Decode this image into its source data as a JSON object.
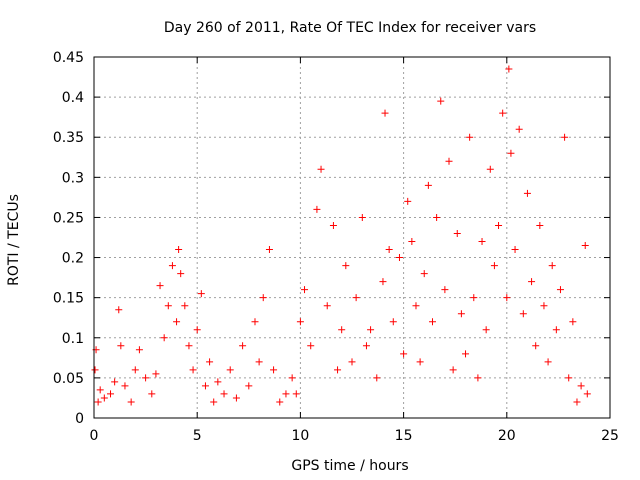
{
  "chart_data": {
    "type": "scatter",
    "title": "Day 260 of 2011, Rate Of TEC Index for receiver vars",
    "xlabel": "GPS time / hours",
    "ylabel": "ROTI / TECUs",
    "xlim": [
      0,
      25
    ],
    "ylim": [
      0,
      0.45
    ],
    "x_ticks": [
      0,
      5,
      10,
      15,
      20,
      25
    ],
    "y_ticks": [
      0,
      0.05,
      0.1,
      0.15,
      0.2,
      0.25,
      0.3,
      0.35,
      0.4,
      0.45
    ],
    "x_tick_labels": [
      "0",
      "5",
      "10",
      "15",
      "20",
      "25"
    ],
    "y_tick_labels": [
      "0",
      "0.05",
      "0.1",
      "0.15",
      "0.2",
      "0.25",
      "0.3",
      "0.35",
      "0.4",
      "0.45"
    ],
    "grid": true,
    "marker": "+",
    "color": "#ff0000",
    "series": [
      {
        "points": [
          [
            0.05,
            0.06
          ],
          [
            0.1,
            0.085
          ],
          [
            0.2,
            0.02
          ],
          [
            0.3,
            0.035
          ],
          [
            0.5,
            0.025
          ],
          [
            0.8,
            0.03
          ],
          [
            1.0,
            0.045
          ],
          [
            1.2,
            0.135
          ],
          [
            1.3,
            0.09
          ],
          [
            1.5,
            0.04
          ],
          [
            1.8,
            0.02
          ],
          [
            2.0,
            0.06
          ],
          [
            2.2,
            0.085
          ],
          [
            2.5,
            0.05
          ],
          [
            2.8,
            0.03
          ],
          [
            3.0,
            0.055
          ],
          [
            3.2,
            0.165
          ],
          [
            3.4,
            0.1
          ],
          [
            3.6,
            0.14
          ],
          [
            3.8,
            0.19
          ],
          [
            4.0,
            0.12
          ],
          [
            4.1,
            0.21
          ],
          [
            4.2,
            0.18
          ],
          [
            4.4,
            0.14
          ],
          [
            4.6,
            0.09
          ],
          [
            4.8,
            0.06
          ],
          [
            5.0,
            0.11
          ],
          [
            5.2,
            0.155
          ],
          [
            5.4,
            0.04
          ],
          [
            5.6,
            0.07
          ],
          [
            5.8,
            0.02
          ],
          [
            6.0,
            0.045
          ],
          [
            6.3,
            0.03
          ],
          [
            6.6,
            0.06
          ],
          [
            6.9,
            0.025
          ],
          [
            7.2,
            0.09
          ],
          [
            7.5,
            0.04
          ],
          [
            7.8,
            0.12
          ],
          [
            8.0,
            0.07
          ],
          [
            8.2,
            0.15
          ],
          [
            8.5,
            0.21
          ],
          [
            8.7,
            0.06
          ],
          [
            9.0,
            0.02
          ],
          [
            9.3,
            0.03
          ],
          [
            9.6,
            0.05
          ],
          [
            9.8,
            0.03
          ],
          [
            10.0,
            0.12
          ],
          [
            10.2,
            0.16
          ],
          [
            10.5,
            0.09
          ],
          [
            10.8,
            0.26
          ],
          [
            11.0,
            0.31
          ],
          [
            11.3,
            0.14
          ],
          [
            11.6,
            0.24
          ],
          [
            11.8,
            0.06
          ],
          [
            12.0,
            0.11
          ],
          [
            12.2,
            0.19
          ],
          [
            12.5,
            0.07
          ],
          [
            12.7,
            0.15
          ],
          [
            13.0,
            0.25
          ],
          [
            13.2,
            0.09
          ],
          [
            13.4,
            0.11
          ],
          [
            13.7,
            0.05
          ],
          [
            14.0,
            0.17
          ],
          [
            14.1,
            0.38
          ],
          [
            14.3,
            0.21
          ],
          [
            14.5,
            0.12
          ],
          [
            14.8,
            0.2
          ],
          [
            15.0,
            0.08
          ],
          [
            15.2,
            0.27
          ],
          [
            15.4,
            0.22
          ],
          [
            15.6,
            0.14
          ],
          [
            15.8,
            0.07
          ],
          [
            16.0,
            0.18
          ],
          [
            16.2,
            0.29
          ],
          [
            16.4,
            0.12
          ],
          [
            16.6,
            0.25
          ],
          [
            16.8,
            0.395
          ],
          [
            17.0,
            0.16
          ],
          [
            17.2,
            0.32
          ],
          [
            17.4,
            0.06
          ],
          [
            17.6,
            0.23
          ],
          [
            17.8,
            0.13
          ],
          [
            18.0,
            0.08
          ],
          [
            18.2,
            0.35
          ],
          [
            18.4,
            0.15
          ],
          [
            18.6,
            0.05
          ],
          [
            18.8,
            0.22
          ],
          [
            19.0,
            0.11
          ],
          [
            19.2,
            0.31
          ],
          [
            19.4,
            0.19
          ],
          [
            19.6,
            0.24
          ],
          [
            19.8,
            0.38
          ],
          [
            20.0,
            0.15
          ],
          [
            20.1,
            0.435
          ],
          [
            20.2,
            0.33
          ],
          [
            20.4,
            0.21
          ],
          [
            20.6,
            0.36
          ],
          [
            20.8,
            0.13
          ],
          [
            21.0,
            0.28
          ],
          [
            21.2,
            0.17
          ],
          [
            21.4,
            0.09
          ],
          [
            21.6,
            0.24
          ],
          [
            21.8,
            0.14
          ],
          [
            22.0,
            0.07
          ],
          [
            22.2,
            0.19
          ],
          [
            22.4,
            0.11
          ],
          [
            22.6,
            0.16
          ],
          [
            22.8,
            0.35
          ],
          [
            23.0,
            0.05
          ],
          [
            23.2,
            0.12
          ],
          [
            23.4,
            0.02
          ],
          [
            23.6,
            0.04
          ],
          [
            23.8,
            0.215
          ],
          [
            23.9,
            0.03
          ]
        ]
      }
    ]
  }
}
